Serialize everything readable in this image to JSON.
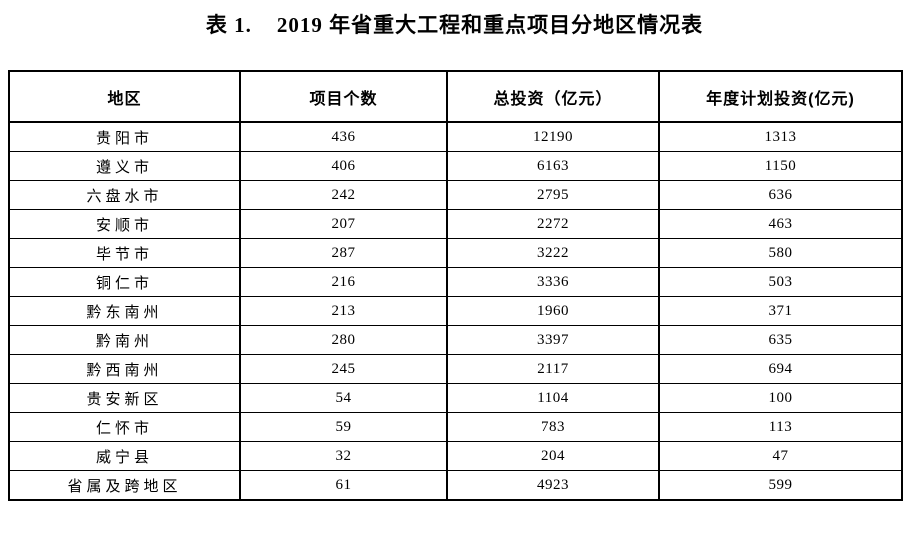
{
  "title": "表 1.    2019 年省重大工程和重点项目分地区情况表",
  "table": {
    "columns": [
      "地区",
      "项目个数",
      "总投资（亿元）",
      "年度计划投资(亿元)"
    ],
    "rows": [
      {
        "region": "贵阳市",
        "projects": "436",
        "total_investment": "12190",
        "annual_planned_investment": "1313"
      },
      {
        "region": "遵义市",
        "projects": "406",
        "total_investment": "6163",
        "annual_planned_investment": "1150"
      },
      {
        "region": "六盘水市",
        "projects": "242",
        "total_investment": "2795",
        "annual_planned_investment": "636"
      },
      {
        "region": "安顺市",
        "projects": "207",
        "total_investment": "2272",
        "annual_planned_investment": "463"
      },
      {
        "region": "毕节市",
        "projects": "287",
        "total_investment": "3222",
        "annual_planned_investment": "580"
      },
      {
        "region": "铜仁市",
        "projects": "216",
        "total_investment": "3336",
        "annual_planned_investment": "503"
      },
      {
        "region": "黔东南州",
        "projects": "213",
        "total_investment": "1960",
        "annual_planned_investment": "371"
      },
      {
        "region": "黔南州",
        "projects": "280",
        "total_investment": "3397",
        "annual_planned_investment": "635"
      },
      {
        "region": "黔西南州",
        "projects": "245",
        "total_investment": "2117",
        "annual_planned_investment": "694"
      },
      {
        "region": "贵安新区",
        "projects": "54",
        "total_investment": "1104",
        "annual_planned_investment": "100"
      },
      {
        "region": "仁怀市",
        "projects": "59",
        "total_investment": "783",
        "annual_planned_investment": "113"
      },
      {
        "region": "威宁县",
        "projects": "32",
        "total_investment": "204",
        "annual_planned_investment": "47"
      },
      {
        "region": "省属及跨地区",
        "projects": "61",
        "total_investment": "4923",
        "annual_planned_investment": "599"
      }
    ]
  }
}
